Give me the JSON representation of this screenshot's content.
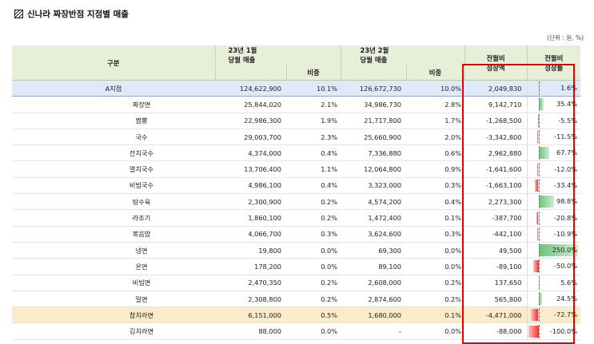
{
  "title": "신나라 짜장반점 지점별 매출",
  "unit": "(단위 : 원, %)",
  "headers": {
    "category": "구분",
    "jan_sales_l1": "23년 1월",
    "jan_sales_l2": "당월 매출",
    "jan_share": "비중",
    "feb_sales_l1": "23년 2월",
    "feb_sales_l2": "당월 매출",
    "feb_share": "비중",
    "mom_amount_l1": "전월비",
    "mom_amount_l2": "성장액",
    "mom_rate_l1": "전월비",
    "mom_rate_l2": "성장률"
  },
  "colors": {
    "header_bg": "#e7efd9",
    "total_row_bg": "#dfe9f7",
    "highlight_row_bg": "#fbecc9",
    "positive_bar": "#6dc278",
    "negative_bar": "#ff2a2a",
    "emphasis_border": "#e00000"
  },
  "rows": [
    {
      "name": "A지점",
      "jan": "124,622,900",
      "jan_share": "10.1%",
      "feb": "126,672,730",
      "feb_share": "10.0%",
      "diff": "2,049,830",
      "rate": "1.6%",
      "rate_value": 1.6,
      "style": "total"
    },
    {
      "name": "짜장면",
      "jan": "25,844,020",
      "jan_share": "2.1%",
      "feb": "34,986,730",
      "feb_share": "2.8%",
      "diff": "9,142,710",
      "rate": "35.4%",
      "rate_value": 35.4,
      "style": ""
    },
    {
      "name": "짬뽕",
      "jan": "22,986,300",
      "jan_share": "1.9%",
      "feb": "21,717,800",
      "feb_share": "1.7%",
      "diff": "-1,268,500",
      "rate": "-5.5%",
      "rate_value": -5.5,
      "style": ""
    },
    {
      "name": "국수",
      "jan": "29,003,700",
      "jan_share": "2.3%",
      "feb": "25,660,900",
      "feb_share": "2.0%",
      "diff": "-3,342,800",
      "rate": "-11.5%",
      "rate_value": -11.5,
      "style": ""
    },
    {
      "name": "잔치국수",
      "jan": "4,374,000",
      "jan_share": "0.4%",
      "feb": "7,336,880",
      "feb_share": "0.6%",
      "diff": "2,962,880",
      "rate": "67.7%",
      "rate_value": 67.7,
      "style": ""
    },
    {
      "name": "멸치국수",
      "jan": "13,706,400",
      "jan_share": "1.1%",
      "feb": "12,064,800",
      "feb_share": "0.9%",
      "diff": "-1,641,600",
      "rate": "-12.0%",
      "rate_value": -12.0,
      "style": ""
    },
    {
      "name": "비빔국수",
      "jan": "4,986,100",
      "jan_share": "0.4%",
      "feb": "3,323,000",
      "feb_share": "0.3%",
      "diff": "-1,663,100",
      "rate": "-33.4%",
      "rate_value": -33.4,
      "style": ""
    },
    {
      "name": "탕수육",
      "jan": "2,300,900",
      "jan_share": "0.2%",
      "feb": "4,574,200",
      "feb_share": "0.4%",
      "diff": "2,273,300",
      "rate": "98.8%",
      "rate_value": 98.8,
      "style": ""
    },
    {
      "name": "라조기",
      "jan": "1,860,100",
      "jan_share": "0.2%",
      "feb": "1,472,400",
      "feb_share": "0.1%",
      "diff": "-387,700",
      "rate": "-20.8%",
      "rate_value": -20.8,
      "style": ""
    },
    {
      "name": "볶음밥",
      "jan": "4,066,700",
      "jan_share": "0.3%",
      "feb": "3,624,600",
      "feb_share": "0.3%",
      "diff": "-442,100",
      "rate": "-10.9%",
      "rate_value": -10.9,
      "style": ""
    },
    {
      "name": "냉면",
      "jan": "19,800",
      "jan_share": "0.0%",
      "feb": "69,300",
      "feb_share": "0.0%",
      "diff": "49,500",
      "rate": "250.0%",
      "rate_value": 250.0,
      "style": ""
    },
    {
      "name": "온면",
      "jan": "178,200",
      "jan_share": "0.0%",
      "feb": "89,100",
      "feb_share": "0.0%",
      "diff": "-89,100",
      "rate": "-50.0%",
      "rate_value": -50.0,
      "style": ""
    },
    {
      "name": "비빔면",
      "jan": "2,470,350",
      "jan_share": "0.2%",
      "feb": "2,608,000",
      "feb_share": "0.2%",
      "diff": "137,650",
      "rate": "5.6%",
      "rate_value": 5.6,
      "style": ""
    },
    {
      "name": "밀면",
      "jan": "2,308,800",
      "jan_share": "0.2%",
      "feb": "2,874,600",
      "feb_share": "0.2%",
      "diff": "565,800",
      "rate": "24.5%",
      "rate_value": 24.5,
      "style": ""
    },
    {
      "name": "참치라면",
      "jan": "6,151,000",
      "jan_share": "0.5%",
      "feb": "1,680,000",
      "feb_share": "0.1%",
      "diff": "-4,471,000",
      "rate": "-72.7%",
      "rate_value": -72.7,
      "style": "hl"
    },
    {
      "name": "김치라면",
      "jan": "88,000",
      "jan_share": "0.0%",
      "feb": "-",
      "feb_share": "0.0%",
      "diff": "-88,000",
      "rate": "-100.0%",
      "rate_value": -100.0,
      "style": ""
    }
  ]
}
